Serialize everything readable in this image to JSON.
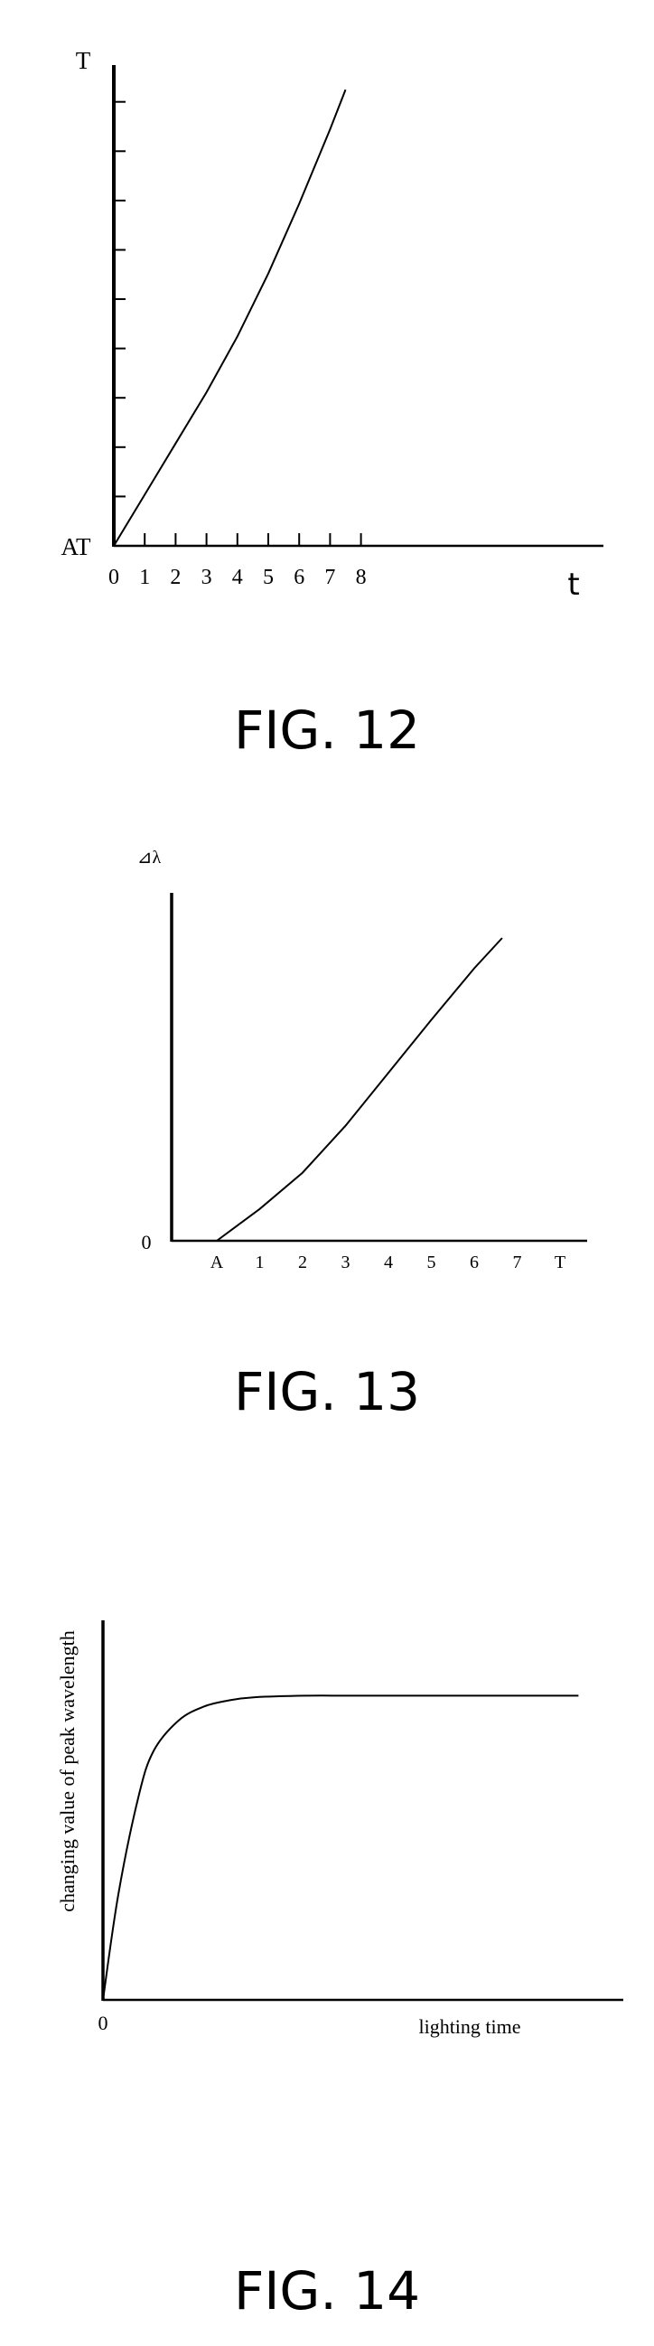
{
  "chart_data": [
    {
      "type": "line",
      "figure_label": "FIG. 12",
      "ylabel": "T",
      "xlabel": "t",
      "origin_label": "AT",
      "x_tick_labels": [
        "0",
        "1",
        "2",
        "3",
        "4",
        "5",
        "6",
        "7",
        "8"
      ],
      "xlim": [
        0,
        9
      ],
      "ylim": [
        0,
        10
      ],
      "series": [
        {
          "x": [
            0,
            1,
            2,
            3,
            4,
            5,
            6,
            7,
            7.5
          ],
          "y": [
            0,
            1.1,
            2.2,
            3.3,
            4.5,
            5.85,
            7.35,
            8.95,
            9.8
          ]
        }
      ]
    },
    {
      "type": "line",
      "figure_label": "FIG. 13",
      "ylabel": "⊿λ",
      "origin_label": "0",
      "x_tick_labels": [
        "A",
        "1",
        "2",
        "3",
        "4",
        "5",
        "6",
        "7",
        "T"
      ],
      "xlim": [
        0,
        8
      ],
      "ylim": [
        0,
        10
      ],
      "series": [
        {
          "x": [
            0,
            1,
            2,
            3,
            4,
            5,
            6,
            6.65
          ],
          "y": [
            0,
            1.05,
            2.25,
            3.8,
            5.55,
            7.3,
            9.0,
            10.0
          ]
        }
      ]
    },
    {
      "type": "line",
      "figure_label": "FIG. 14",
      "ylabel": "changing value of peak wavelength",
      "xlabel": "lighting time",
      "origin_label": "0",
      "xlim": [
        0,
        10
      ],
      "ylim": [
        0,
        10
      ],
      "series": [
        {
          "x": [
            0,
            0.3,
            0.7,
            1.0,
            1.5,
            2.0,
            2.5,
            3.0,
            4.0,
            5.0,
            7.0,
            9.4
          ],
          "y": [
            0,
            3.4,
            6.6,
            8.1,
            9.1,
            9.55,
            9.75,
            9.85,
            9.9,
            9.9,
            9.9,
            9.9
          ]
        }
      ]
    }
  ]
}
